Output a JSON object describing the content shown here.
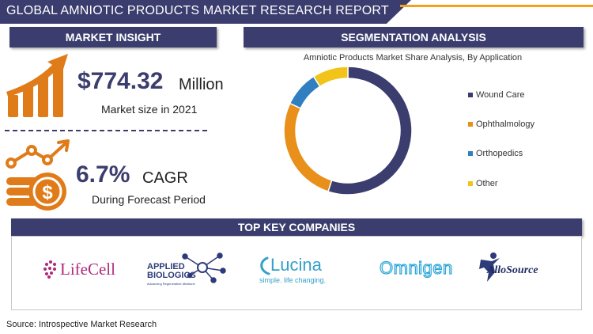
{
  "title": "GLOBAL AMNIOTIC PRODUCTS MARKET RESEARCH REPORT",
  "market_insight": {
    "header": "MARKET INSIGHT",
    "market_size_value": "$774.32",
    "market_size_unit": "Million",
    "market_size_caption": "Market size in 2021",
    "cagr_value": "6.7%",
    "cagr_label": "CAGR",
    "cagr_caption": "During Forecast Period",
    "icons": [
      "growth-bar-chart-icon",
      "coin-growth-icon"
    ]
  },
  "segmentation": {
    "header": "SEGMENTATION ANALYSIS"
  },
  "chart_data": {
    "type": "pie",
    "style": "donut",
    "title": "Amniotic Products Market Share Analysis, By Application",
    "categories": [
      "Wound Care",
      "Ophthalmology",
      "Orthopedics",
      "Other"
    ],
    "values": [
      55,
      27,
      9,
      9
    ],
    "colors": [
      "#3b3d6e",
      "#e8901a",
      "#2f7fc1",
      "#f2c318"
    ],
    "legend": "right"
  },
  "companies": {
    "header": "TOP KEY COMPANIES",
    "logos": [
      {
        "name": "LifeCell"
      },
      {
        "name_line1": "APPLIED",
        "name_line2": "BIOLOGICS",
        "tagline": "Advancing Regenerative Medicine"
      },
      {
        "name": "Lucina",
        "tagline": "simple. life changing."
      },
      {
        "name": "Omnigen"
      },
      {
        "name": "AlloSource"
      }
    ]
  },
  "source": "Source: Introspective Market Research",
  "colors": {
    "primary": "#3b3d6e",
    "accent": "#f5a01a",
    "icon_orange": "#e07b1a"
  }
}
